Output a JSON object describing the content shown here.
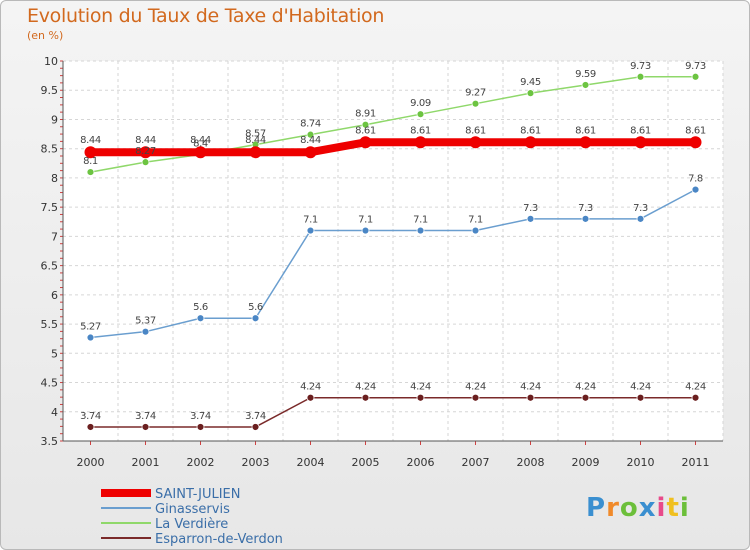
{
  "title": "Evolution du Taux de Taxe d'Habitation",
  "subtitle": "(en %)",
  "logo": {
    "parts": [
      {
        "t": "P",
        "c": "#3a8fd0"
      },
      {
        "t": "r",
        "c": "#f08a2a"
      },
      {
        "t": "o",
        "c": "#6cbf3a"
      },
      {
        "t": "x",
        "c": "#3a8fd0"
      },
      {
        "t": "i",
        "c": "#e84b8a"
      },
      {
        "t": "t",
        "c": "#f0c020"
      },
      {
        "t": "i",
        "c": "#6cbf3a"
      }
    ]
  },
  "chart_data": {
    "type": "line",
    "x": [
      "2000",
      "2001",
      "2002",
      "2003",
      "2004",
      "2005",
      "2006",
      "2007",
      "2008",
      "2009",
      "2010",
      "2011"
    ],
    "ylim": [
      3.5,
      10
    ],
    "yticks": [
      "3.5",
      "4",
      "4.5",
      "5",
      "5.5",
      "6",
      "6.5",
      "7",
      "7.5",
      "8",
      "8.5",
      "9",
      "9.5",
      "10"
    ],
    "grid": true,
    "legend_position": "bottom-left",
    "series": [
      {
        "name": "SAINT-JULIEN",
        "color": "#ee0000",
        "thick": true,
        "values": [
          8.44,
          8.44,
          8.44,
          8.44,
          8.44,
          8.61,
          8.61,
          8.61,
          8.61,
          8.61,
          8.61,
          8.61
        ],
        "labels": [
          "8.44",
          "8.44",
          "8.44",
          "8.44",
          "8.44",
          "8.61",
          "8.61",
          "8.61",
          "8.61",
          "8.61",
          "8.61",
          "8.61"
        ]
      },
      {
        "name": "Ginasservis",
        "color": "#6a9ecf",
        "marker": "#4a86c5",
        "values": [
          5.27,
          5.37,
          5.6,
          5.6,
          7.1,
          7.1,
          7.1,
          7.1,
          7.3,
          7.3,
          7.3,
          7.8
        ],
        "labels": [
          "5.27",
          "5.37",
          "5.6",
          "5.6",
          "7.1",
          "7.1",
          "7.1",
          "7.1",
          "7.3",
          "7.3",
          "7.3",
          "7.8"
        ]
      },
      {
        "name": "La Verdière",
        "color": "#8fd86a",
        "marker": "#6cc441",
        "values": [
          8.1,
          8.27,
          8.4,
          8.57,
          8.74,
          8.91,
          9.09,
          9.27,
          9.45,
          9.59,
          9.73,
          9.73
        ],
        "labels": [
          "8.1",
          "8.27",
          "8.4",
          "8.57",
          "8.74",
          "8.91",
          "9.09",
          "9.27",
          "9.45",
          "9.59",
          "9.73",
          "9.73"
        ]
      },
      {
        "name": "Esparron-de-Verdon",
        "color": "#7a2a2a",
        "marker": "#6b1f1f",
        "values": [
          3.74,
          3.74,
          3.74,
          3.74,
          4.24,
          4.24,
          4.24,
          4.24,
          4.24,
          4.24,
          4.24,
          4.24
        ],
        "labels": [
          "3.74",
          "3.74",
          "3.74",
          "3.74",
          "4.24",
          "4.24",
          "4.24",
          "4.24",
          "4.24",
          "4.24",
          "4.24",
          "4.24"
        ]
      }
    ]
  }
}
